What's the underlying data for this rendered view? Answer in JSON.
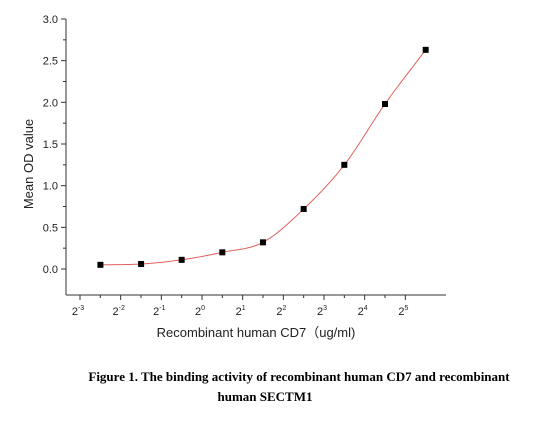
{
  "chart_data": {
    "type": "scatter",
    "xlabel": "Recombinant human CD7（ug/ml)",
    "ylabel": "Mean OD value",
    "x_scale": "log2",
    "xlim": [
      0.125,
      64
    ],
    "ylim": [
      -0.3,
      3.0
    ],
    "x_ticks": [
      {
        "value": 0.125,
        "base": "2",
        "exp": "-3"
      },
      {
        "value": 0.25,
        "base": "2",
        "exp": "-2"
      },
      {
        "value": 0.5,
        "base": "2",
        "exp": "-1"
      },
      {
        "value": 1,
        "base": "2",
        "exp": "0"
      },
      {
        "value": 2,
        "base": "2",
        "exp": "1"
      },
      {
        "value": 4,
        "base": "2",
        "exp": "2"
      },
      {
        "value": 8,
        "base": "2",
        "exp": "3"
      },
      {
        "value": 16,
        "base": "2",
        "exp": "4"
      },
      {
        "value": 32,
        "base": "2",
        "exp": "5"
      }
    ],
    "y_ticks": [
      "0.0",
      "0.5",
      "1.0",
      "1.5",
      "2.0",
      "2.5",
      "3.0"
    ],
    "x": [
      0.177,
      0.354,
      0.707,
      1.414,
      2.828,
      5.657,
      11.314,
      22.627,
      45.255
    ],
    "y": [
      0.05,
      0.06,
      0.11,
      0.2,
      0.32,
      0.72,
      1.25,
      1.98,
      2.63
    ],
    "marker_color": "#000000",
    "fit_color": "#e0605c",
    "grid": false
  },
  "caption": {
    "line1": "Figure 1. The binding activity of recombinant human CD7 and recombinant",
    "line2": "human SECTM1"
  }
}
